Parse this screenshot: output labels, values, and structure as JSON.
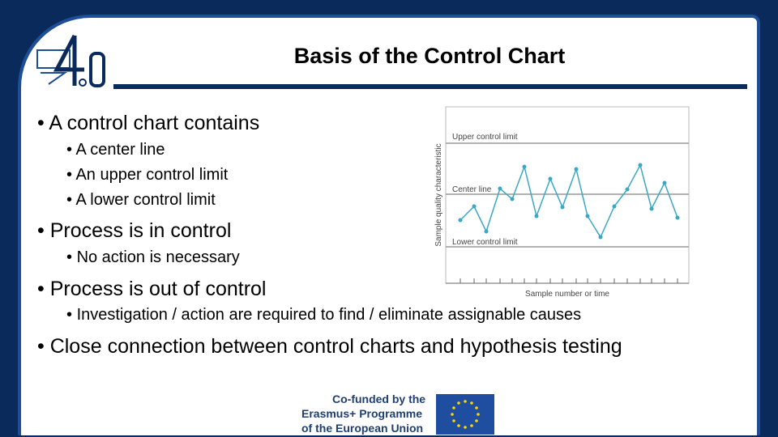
{
  "header": {
    "title": "Basis of the Control Chart"
  },
  "bullets": [
    {
      "text": "A control chart contains",
      "sub": [
        "A center line",
        "An upper control limit",
        "A lower control limit"
      ]
    },
    {
      "text": "Process is in control",
      "sub": [
        "No action is necessary"
      ]
    },
    {
      "text": "Process is out of control",
      "sub": [
        "Investigation / action are required to find / eliminate assignable causes"
      ]
    },
    {
      "text": "Close connection between control charts and hypothesis testing",
      "sub": []
    }
  ],
  "figure": {
    "y_label": "Sample quality characteristic",
    "x_label": "Sample number or time",
    "upper": "Upper control limit",
    "center": "Center line",
    "lower": "Lower control limit"
  },
  "footer": {
    "lines": [
      "Co-funded by the",
      "Erasmus+ Programme",
      "of the European Union"
    ]
  }
}
